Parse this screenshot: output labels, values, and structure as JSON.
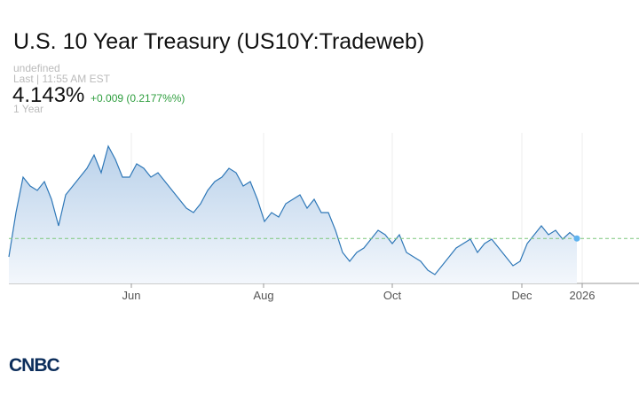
{
  "header": {
    "title": "U.S. 10 Year Treasury (US10Y:Tradeweb)",
    "source": "undefined",
    "time": "Last | 11:55 AM EST",
    "price": "4.143%",
    "change": "+0.009 (0.2177%%)",
    "range": "1 Year"
  },
  "chart_data": {
    "type": "line",
    "color": "#2f78b8",
    "values": [
      4.06,
      4.26,
      4.42,
      4.38,
      4.36,
      4.4,
      4.32,
      4.2,
      4.34,
      4.38,
      4.42,
      4.46,
      4.52,
      4.44,
      4.56,
      4.5,
      4.42,
      4.42,
      4.48,
      4.46,
      4.42,
      4.44,
      4.4,
      4.36,
      4.32,
      4.28,
      4.26,
      4.3,
      4.36,
      4.4,
      4.42,
      4.46,
      4.44,
      4.38,
      4.4,
      4.32,
      4.22,
      4.26,
      4.24,
      4.3,
      4.32,
      4.34,
      4.28,
      4.32,
      4.26,
      4.26,
      4.18,
      4.08,
      4.04,
      4.08,
      4.1,
      4.14,
      4.18,
      4.16,
      4.12,
      4.16,
      4.08,
      4.06,
      4.04,
      4.0,
      3.98,
      4.02,
      4.06,
      4.1,
      4.12,
      4.14,
      4.08,
      4.12,
      4.14,
      4.1,
      4.06,
      4.02,
      4.04,
      4.12,
      4.16,
      4.2,
      4.16,
      4.18,
      4.14,
      4.17,
      4.143
    ],
    "xlim": [
      0,
      88.75
    ],
    "ylim": [
      3.94,
      4.62
    ],
    "xticks": [
      {
        "value": 17.25,
        "label": "Jun"
      },
      {
        "value": 35.875,
        "label": "Aug"
      },
      {
        "value": 54,
        "label": "Oct"
      },
      {
        "value": 72.25,
        "label": "Dec"
      },
      {
        "value": 80.75,
        "label": "2026"
      }
    ]
  },
  "logo": "CNBC"
}
